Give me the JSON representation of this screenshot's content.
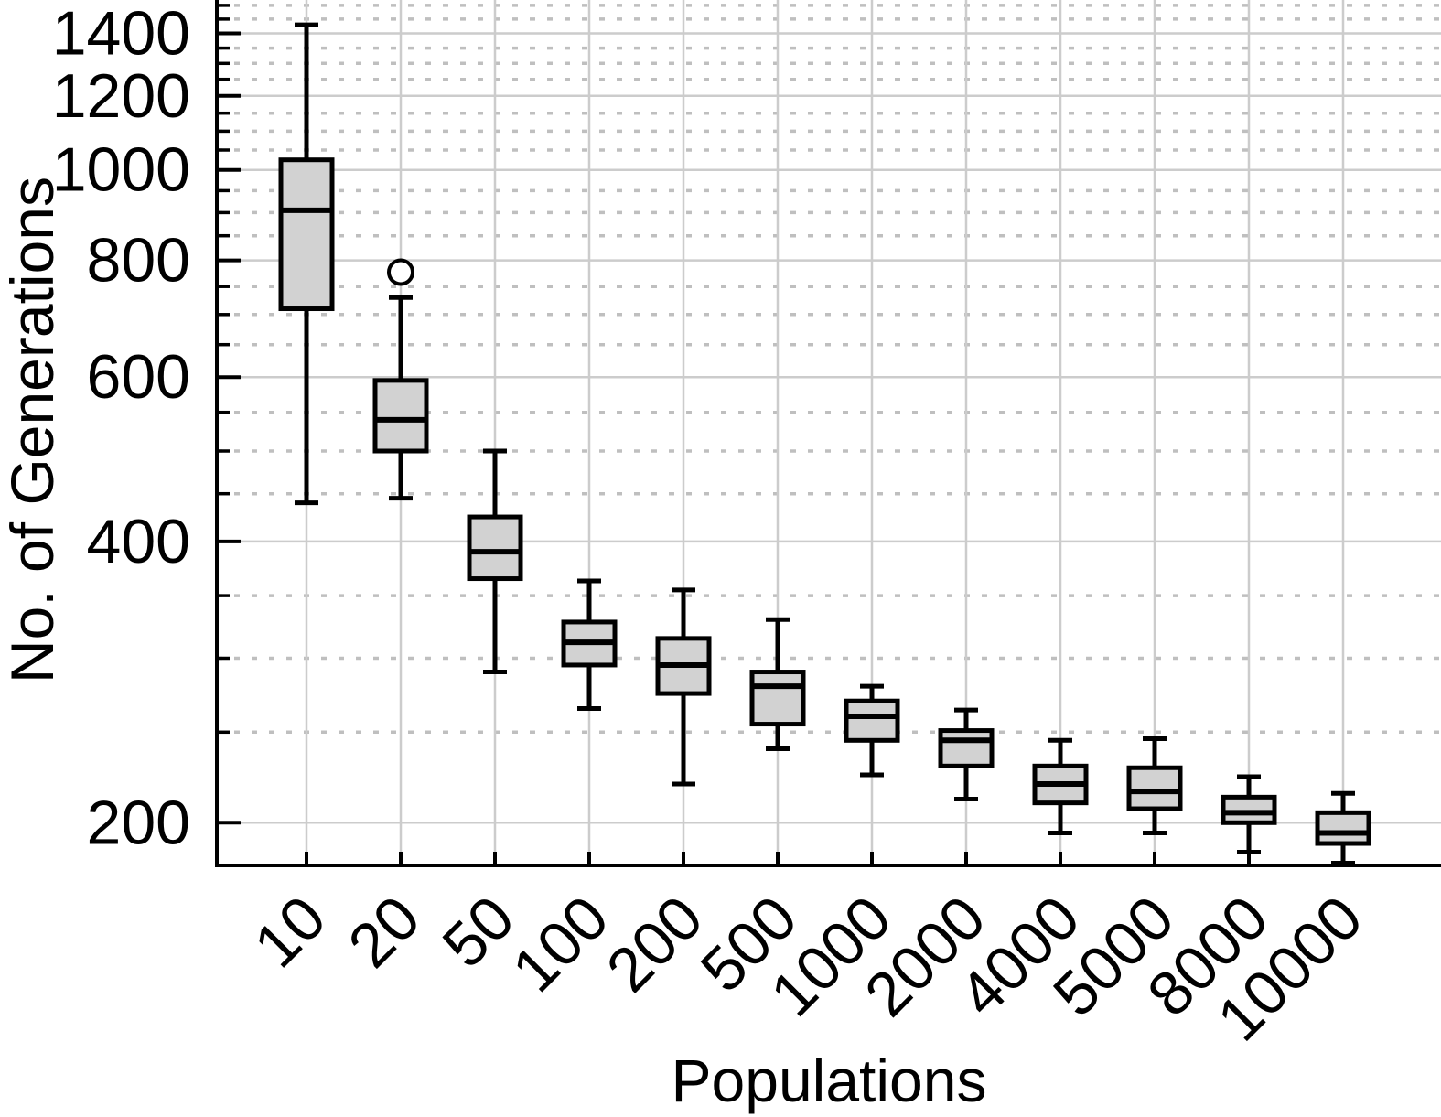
{
  "figure": {
    "title": "",
    "background": "#ffffff"
  },
  "chart_data": {
    "type": "box",
    "title": "",
    "xlabel": "Populations",
    "ylabel": "No. of Generations",
    "yscale": "log",
    "ylim": [
      180,
      1520
    ],
    "grid": "major-solid, minor-dotted, vertical-at-categories",
    "legend": "none",
    "ytick_values": [
      200,
      400,
      600,
      800,
      1000,
      1200,
      1400
    ],
    "ytick_labels": [
      "200",
      "400",
      "600",
      "800",
      "1000",
      "1200",
      "1400"
    ],
    "yminor_values": [
      250,
      300,
      350,
      450,
      500,
      550,
      650,
      700,
      750,
      850,
      900,
      950,
      1050,
      1100,
      1150,
      1250,
      1300,
      1350,
      1450,
      1500
    ],
    "categories": [
      "10",
      "20",
      "50",
      "100",
      "200",
      "500",
      "1000",
      "2000",
      "4000",
      "5000",
      "8000",
      "10000"
    ],
    "boxes": [
      {
        "category": "10",
        "whisker_low": 440,
        "q1": 710,
        "median": 905,
        "q3": 1025,
        "whisker_high": 1430,
        "outliers": []
      },
      {
        "category": "20",
        "whisker_low": 445,
        "q1": 500,
        "median": 540,
        "q3": 595,
        "whisker_high": 730,
        "outliers": [
          777
        ]
      },
      {
        "category": "50",
        "whisker_low": 290,
        "q1": 365,
        "median": 390,
        "q3": 425,
        "whisker_high": 500,
        "outliers": []
      },
      {
        "category": "100",
        "whisker_low": 265,
        "q1": 295,
        "median": 312,
        "q3": 328,
        "whisker_high": 363,
        "outliers": []
      },
      {
        "category": "200",
        "whisker_low": 220,
        "q1": 275,
        "median": 295,
        "q3": 315,
        "whisker_high": 355,
        "outliers": []
      },
      {
        "category": "500",
        "whisker_low": 240,
        "q1": 255,
        "median": 280,
        "q3": 290,
        "whisker_high": 330,
        "outliers": []
      },
      {
        "category": "1000",
        "whisker_low": 225,
        "q1": 245,
        "median": 260,
        "q3": 270,
        "whisker_high": 280,
        "outliers": []
      },
      {
        "category": "2000",
        "whisker_low": 212,
        "q1": 230,
        "median": 245,
        "q3": 251,
        "whisker_high": 264,
        "outliers": []
      },
      {
        "category": "4000",
        "whisker_low": 195,
        "q1": 210,
        "median": 220,
        "q3": 230,
        "whisker_high": 245,
        "outliers": []
      },
      {
        "category": "5000",
        "whisker_low": 195,
        "q1": 207,
        "median": 216,
        "q3": 229,
        "whisker_high": 246,
        "outliers": []
      },
      {
        "category": "8000",
        "whisker_low": 186,
        "q1": 200,
        "median": 205,
        "q3": 213,
        "whisker_high": 224,
        "outliers": []
      },
      {
        "category": "10000",
        "whisker_low": 181,
        "q1": 190,
        "median": 195,
        "q3": 205,
        "whisker_high": 215,
        "outliers": []
      }
    ],
    "colors": {
      "box_fill": "#d2d2d2",
      "box_stroke": "#000000",
      "median": "#000000",
      "whisker": "#000000",
      "grid_major": "#cccccc",
      "grid_minor": "#bfbfbf",
      "axis": "#000000",
      "background": "#ffffff"
    }
  }
}
